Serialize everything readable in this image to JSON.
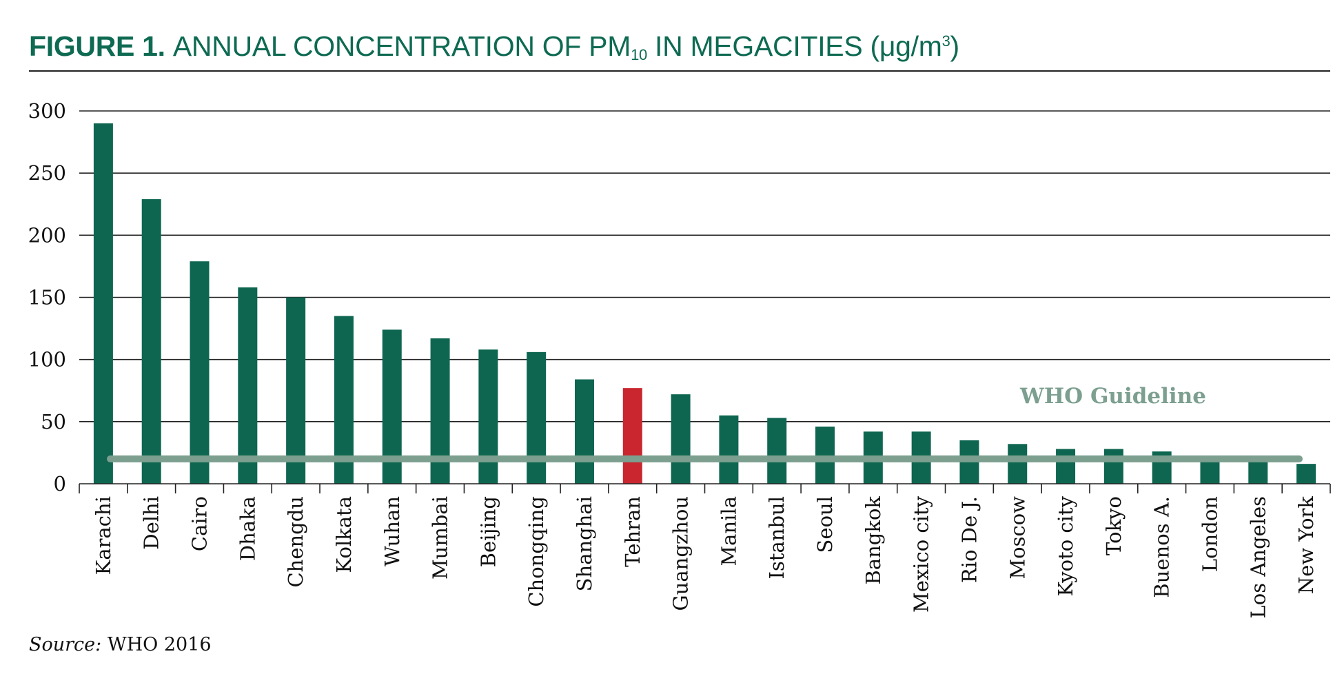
{
  "title": {
    "label": "FIGURE 1.",
    "text": "ANNUAL CONCENTRATION OF PM",
    "pm_subscript": "10",
    "text_after": " IN MEGACITIES (μg/m",
    "unit_superscript": "3",
    "text_end": ")"
  },
  "source": {
    "label": "Source:",
    "text": " WHO 2016"
  },
  "colors": {
    "bar": "#0e6650",
    "highlight_bar": "#c9262f",
    "guideline": "#7c9f8f",
    "title": "#0e6a52"
  },
  "chart_data": {
    "type": "bar",
    "categories": [
      "Karachi",
      "Delhi",
      "Cairo",
      "Dhaka",
      "Chengdu",
      "Kolkata",
      "Wuhan",
      "Mumbai",
      "Beijing",
      "Chongqing",
      "Shanghai",
      "Tehran",
      "Guangzhou",
      "Manila",
      "Istanbul",
      "Seoul",
      "Bangkok",
      "Mexico city",
      "Rio De J.",
      "Moscow",
      "Kyoto city",
      "Tokyo",
      "Buenos A.",
      "London",
      "Los Angeles",
      "New York"
    ],
    "values": [
      290,
      229,
      179,
      158,
      150,
      135,
      124,
      117,
      108,
      106,
      84,
      77,
      72,
      55,
      53,
      46,
      42,
      42,
      35,
      32,
      28,
      28,
      26,
      22,
      20,
      16
    ],
    "highlight_category": "Tehran",
    "ylim": [
      0,
      300
    ],
    "yticks": [
      0,
      50,
      100,
      150,
      200,
      250,
      300
    ],
    "grid": true,
    "reference_line": {
      "label": "WHO Guideline",
      "value": 20
    },
    "xlabel": "",
    "ylabel": ""
  }
}
